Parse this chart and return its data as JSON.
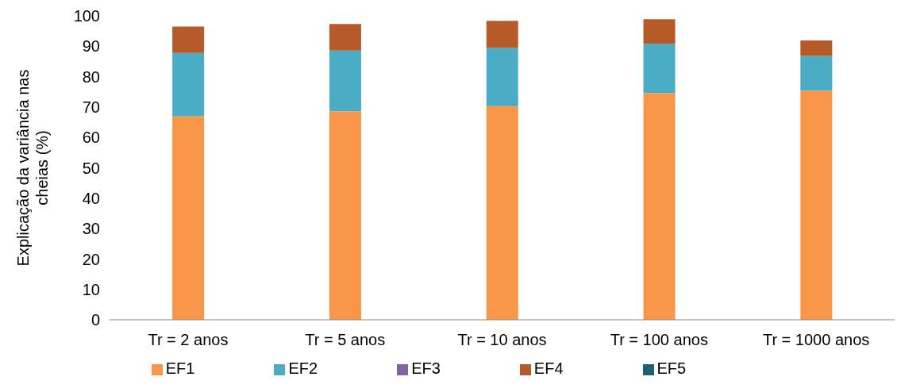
{
  "chart_data": {
    "type": "bar",
    "stacked": true,
    "ylabel": "Explicação da variância nas cheias (%)",
    "categories": [
      "Tr = 2 anos",
      "Tr = 5 anos",
      "Tr = 10 anos",
      "Tr = 100 anos",
      "Tr = 1000 anos"
    ],
    "series": [
      {
        "name": "EF1",
        "color": "#f79646",
        "values": [
          67,
          68.6,
          70.3,
          74.6,
          75.4
        ]
      },
      {
        "name": "EF2",
        "color": "#4bacc6",
        "values": [
          20.8,
          20,
          19.2,
          16.2,
          11.4
        ]
      },
      {
        "name": "EF3",
        "color": "#8064a2",
        "values": [
          0,
          0,
          0,
          0,
          0
        ]
      },
      {
        "name": "EF4",
        "color": "#b65a2a",
        "values": [
          8.7,
          8.7,
          8.9,
          8.1,
          5.1
        ]
      },
      {
        "name": "EF5",
        "color": "#1f5f73",
        "values": [
          0,
          0,
          0,
          0,
          0
        ]
      }
    ],
    "ylim": [
      0,
      100
    ],
    "yticks": [
      0,
      10,
      20,
      30,
      40,
      50,
      60,
      70,
      80,
      90,
      100
    ],
    "grid": false,
    "legend": "bottom"
  }
}
